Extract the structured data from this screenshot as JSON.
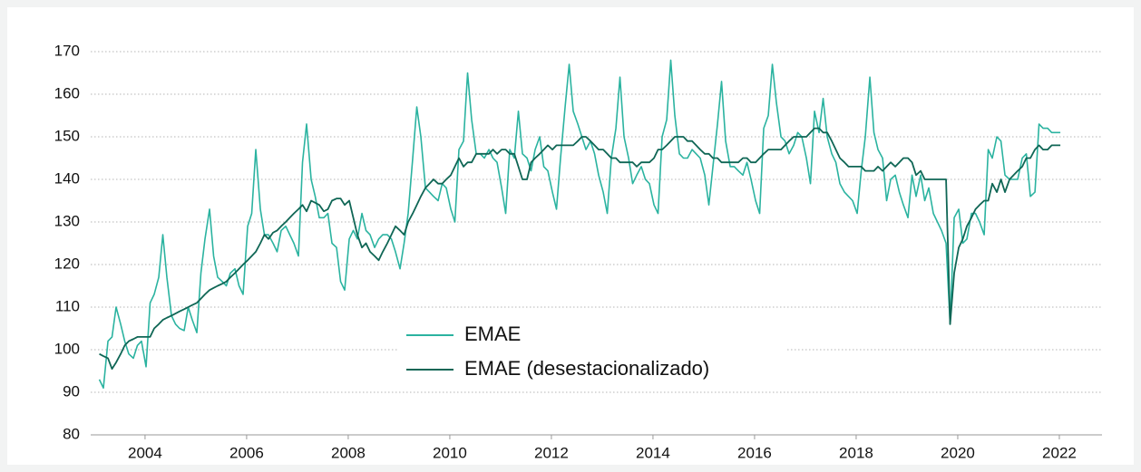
{
  "chart_data": {
    "type": "line",
    "x": [
      2003.1,
      2003.18,
      2003.27,
      2003.35,
      2003.43,
      2003.52,
      2003.6,
      2003.68,
      2003.77,
      2003.85,
      2003.93,
      2004.02,
      2004.1,
      2004.18,
      2004.27,
      2004.35,
      2004.43,
      2004.52,
      2004.6,
      2004.68,
      2004.77,
      2004.85,
      2004.93,
      2005.02,
      2005.1,
      2005.18,
      2005.27,
      2005.35,
      2005.43,
      2005.52,
      2005.6,
      2005.68,
      2005.77,
      2005.85,
      2005.93,
      2006.02,
      2006.1,
      2006.18,
      2006.27,
      2006.35,
      2006.43,
      2006.52,
      2006.6,
      2006.68,
      2006.77,
      2006.85,
      2006.93,
      2007.02,
      2007.1,
      2007.18,
      2007.27,
      2007.35,
      2007.43,
      2007.52,
      2007.6,
      2007.68,
      2007.77,
      2007.85,
      2007.93,
      2008.02,
      2008.1,
      2008.18,
      2008.27,
      2008.35,
      2008.43,
      2008.52,
      2008.6,
      2008.68,
      2008.77,
      2008.85,
      2008.93,
      2009.02,
      2009.1,
      2009.18,
      2009.27,
      2009.35,
      2009.43,
      2009.52,
      2009.6,
      2009.68,
      2009.77,
      2009.85,
      2009.93,
      2010.02,
      2010.1,
      2010.18,
      2010.27,
      2010.35,
      2010.43,
      2010.52,
      2010.6,
      2010.68,
      2010.77,
      2010.85,
      2010.93,
      2011.02,
      2011.1,
      2011.18,
      2011.27,
      2011.35,
      2011.43,
      2011.52,
      2011.6,
      2011.68,
      2011.77,
      2011.85,
      2011.93,
      2012.02,
      2012.1,
      2012.18,
      2012.27,
      2012.35,
      2012.43,
      2012.52,
      2012.6,
      2012.68,
      2012.77,
      2012.85,
      2012.93,
      2013.02,
      2013.1,
      2013.18,
      2013.27,
      2013.35,
      2013.43,
      2013.52,
      2013.6,
      2013.68,
      2013.77,
      2013.85,
      2013.93,
      2014.02,
      2014.1,
      2014.18,
      2014.27,
      2014.35,
      2014.43,
      2014.52,
      2014.6,
      2014.68,
      2014.77,
      2014.85,
      2014.93,
      2015.02,
      2015.1,
      2015.18,
      2015.27,
      2015.35,
      2015.43,
      2015.52,
      2015.6,
      2015.68,
      2015.77,
      2015.85,
      2015.93,
      2016.02,
      2016.1,
      2016.18,
      2016.27,
      2016.35,
      2016.43,
      2016.52,
      2016.6,
      2016.68,
      2016.77,
      2016.85,
      2016.93,
      2017.02,
      2017.1,
      2017.18,
      2017.27,
      2017.35,
      2017.43,
      2017.52,
      2017.6,
      2017.68,
      2017.77,
      2017.85,
      2017.93,
      2018.02,
      2018.1,
      2018.18,
      2018.27,
      2018.35,
      2018.43,
      2018.52,
      2018.6,
      2018.68,
      2018.77,
      2018.85,
      2018.93,
      2019.02,
      2019.1,
      2019.18,
      2019.27,
      2019.35,
      2019.43,
      2019.52,
      2019.6,
      2019.68,
      2019.77,
      2019.85,
      2019.93,
      2020.02,
      2020.1,
      2020.18,
      2020.27,
      2020.35,
      2020.43,
      2020.52,
      2020.6,
      2020.68,
      2020.77,
      2020.85,
      2020.93,
      2021.02,
      2021.1,
      2021.18,
      2021.27,
      2021.35,
      2021.43,
      2021.52,
      2021.6,
      2021.68,
      2021.77,
      2021.85,
      2021.93,
      2022.02
    ],
    "series": [
      {
        "name": "EMAE",
        "color": "#2bb3a0",
        "width": 1.6,
        "values": [
          93,
          91,
          102,
          103,
          110,
          106,
          102,
          99,
          98,
          101,
          102,
          96,
          111,
          113,
          117,
          127,
          117,
          108,
          106,
          105,
          104.5,
          110,
          107,
          104,
          118,
          126,
          133,
          122,
          117,
          116,
          115,
          118,
          119,
          115,
          113,
          129,
          132,
          147,
          133,
          127,
          127,
          125,
          123,
          128,
          129,
          127,
          125,
          122,
          144,
          153,
          140,
          136,
          131,
          131,
          132,
          125,
          124,
          116,
          114,
          126,
          128,
          126,
          132,
          128,
          127,
          124,
          126,
          127,
          127,
          126,
          123,
          119,
          125,
          132,
          145,
          157,
          150,
          138,
          137,
          136,
          135,
          139,
          138,
          133,
          130,
          147,
          149,
          165,
          154,
          146,
          146,
          145,
          147,
          145,
          144,
          138,
          132,
          147,
          145,
          156,
          146,
          145,
          142,
          147,
          150,
          143,
          142,
          137,
          133,
          145,
          157,
          167,
          156,
          153,
          150,
          147,
          149,
          146,
          141,
          137,
          132,
          145,
          152,
          164,
          150,
          145,
          139,
          141,
          143,
          140,
          139,
          134,
          132,
          150,
          154,
          168,
          155,
          146,
          145,
          145,
          147,
          146,
          145,
          141,
          134,
          143,
          153,
          163,
          149,
          143,
          143,
          142,
          141,
          144,
          140,
          135,
          132,
          152,
          155,
          167,
          158,
          150,
          149,
          146,
          148,
          151,
          150,
          145,
          139,
          156,
          151,
          159,
          150,
          146,
          144,
          139,
          137,
          136,
          135,
          132,
          142,
          150,
          164,
          151,
          147,
          145,
          135,
          140,
          141,
          137,
          134,
          131,
          141,
          136,
          141,
          135,
          138,
          132,
          130,
          128,
          125,
          106,
          131,
          133,
          125,
          126,
          132,
          132,
          130,
          127,
          147,
          145,
          150,
          149,
          141,
          140,
          140,
          140,
          145,
          146,
          136,
          137,
          153,
          152,
          152,
          151,
          151,
          151
        ]
      },
      {
        "name": "EMAE (desestacionalizado)",
        "color": "#0f6655",
        "width": 1.8,
        "values": [
          99,
          98.5,
          98,
          95.5,
          97,
          99,
          101,
          102,
          102.5,
          103,
          103,
          103,
          103,
          105,
          106,
          107,
          107.5,
          108,
          108.5,
          109,
          109.5,
          110,
          110.5,
          111,
          112,
          113,
          114,
          114.5,
          115,
          115.5,
          116,
          117,
          118,
          119,
          120,
          121,
          122,
          123,
          125,
          127,
          126,
          127.5,
          128,
          129,
          130,
          131,
          132,
          133,
          134,
          132.5,
          135,
          134.5,
          134,
          132.5,
          133,
          135,
          135.5,
          135.5,
          134,
          135,
          131,
          127,
          124,
          125,
          123,
          122,
          121,
          123,
          125,
          127,
          129,
          128,
          127,
          130,
          132,
          134,
          136,
          138,
          139,
          140,
          139,
          139,
          140,
          141,
          143,
          145,
          143,
          144,
          144,
          146,
          146,
          146,
          146,
          147,
          146,
          147,
          147,
          146,
          146,
          143,
          140,
          140,
          144,
          145,
          146,
          147,
          148,
          147,
          148,
          148,
          148,
          148,
          148,
          149,
          150,
          150,
          149,
          148,
          147,
          147,
          146,
          145,
          145,
          144,
          144,
          144,
          144,
          143,
          144,
          144,
          144,
          145,
          147,
          147,
          148,
          149,
          150,
          150,
          150,
          149,
          149,
          148,
          147,
          146,
          146,
          145,
          145,
          144,
          144,
          144,
          144,
          144,
          145,
          145,
          144,
          144,
          145,
          146,
          147,
          147,
          147,
          147,
          148,
          149,
          150,
          150,
          150,
          150,
          151,
          152,
          152,
          151,
          151,
          149,
          147,
          145,
          144,
          143,
          143,
          143,
          143,
          142,
          142,
          142,
          143,
          142,
          143,
          144,
          143,
          144,
          145,
          145,
          144,
          141,
          142,
          140,
          140,
          140,
          140,
          140,
          140,
          106,
          118,
          124,
          126,
          129,
          131,
          133,
          134,
          135,
          135,
          139,
          137,
          140,
          137,
          140,
          141,
          142,
          143,
          145,
          145,
          147,
          148,
          147,
          147,
          148,
          148,
          148
        ]
      }
    ],
    "xlim": [
      2002.93,
      2022.84
    ],
    "xticks": [
      2004,
      2006,
      2008,
      2010,
      2012,
      2014,
      2016,
      2018,
      2020,
      2022
    ],
    "ylim": [
      80,
      170
    ],
    "yticks": [
      80,
      90,
      100,
      110,
      120,
      130,
      140,
      150,
      160,
      170
    ],
    "grid": true,
    "legend": "bottom-center"
  }
}
